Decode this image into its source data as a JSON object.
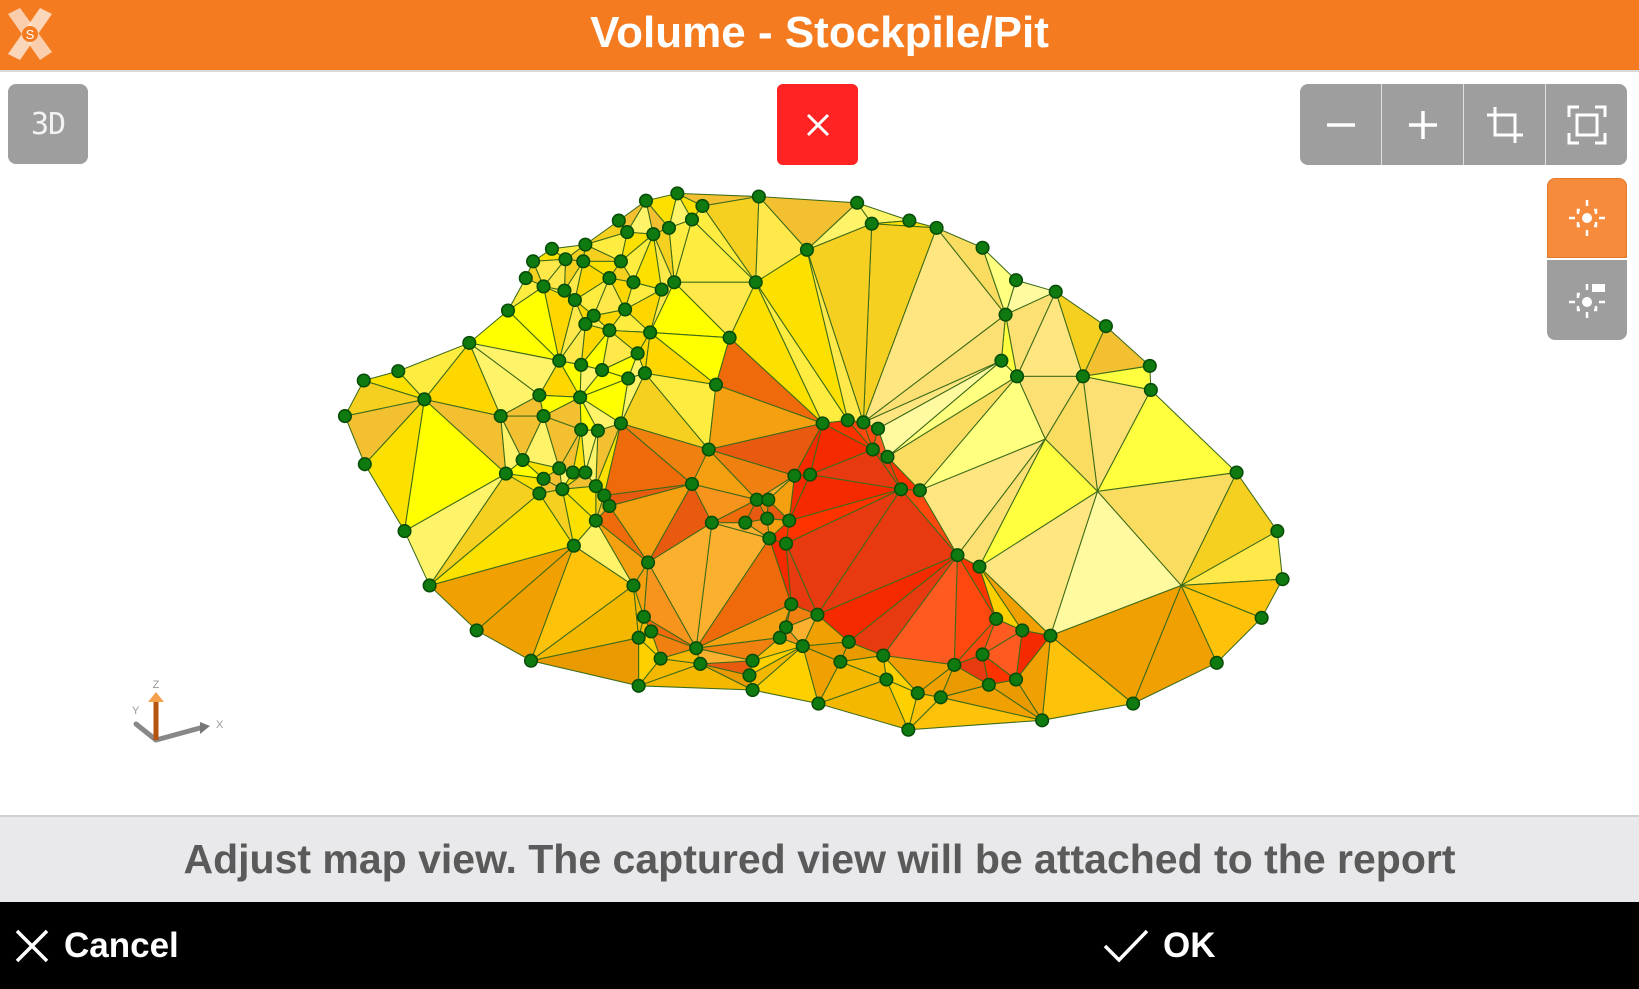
{
  "header": {
    "title": "Volume - Stockpile/Pit",
    "logo_letter": "S",
    "color": "#f47b20"
  },
  "toolbar": {
    "view_mode_label": "3D",
    "close_icon": "close-icon",
    "zoom_out_icon": "minus-icon",
    "zoom_in_icon": "plus-icon",
    "crop_icon": "crop-icon",
    "fit_icon": "fit-to-screen-icon",
    "center_icon": "crosshair-icon",
    "center_point_icon": "crosshair-flag-icon"
  },
  "axis": {
    "x": "X",
    "y": "Y",
    "z": "Z"
  },
  "info": {
    "message": "Adjust map view. The captured view will be attached to the report"
  },
  "footer": {
    "cancel_label": "Cancel",
    "ok_label": "OK"
  }
}
